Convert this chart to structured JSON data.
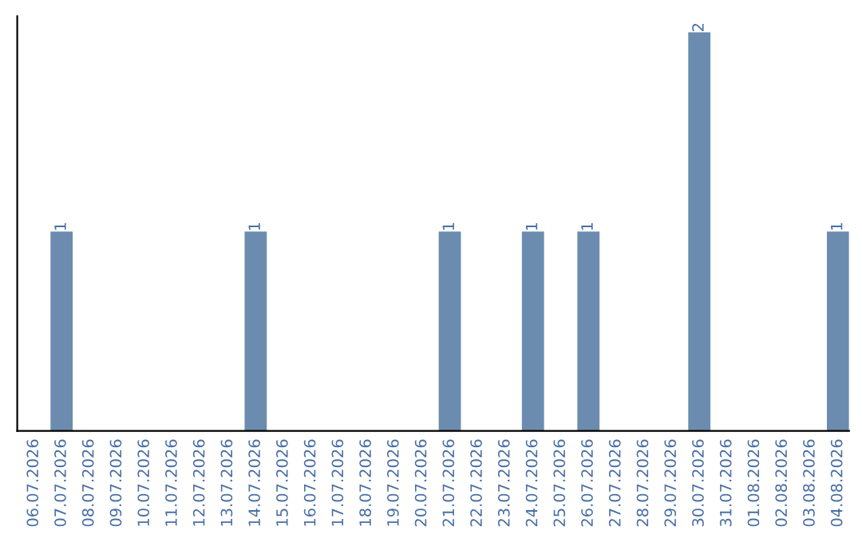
{
  "chart_data": {
    "type": "bar",
    "categories": [
      "06.07.2026",
      "07.07.2026",
      "08.07.2026",
      "09.07.2026",
      "10.07.2026",
      "11.07.2026",
      "12.07.2026",
      "13.07.2026",
      "14.07.2026",
      "15.07.2026",
      "16.07.2026",
      "17.07.2026",
      "18.07.2026",
      "19.07.2026",
      "20.07.2026",
      "21.07.2026",
      "22.07.2026",
      "23.07.2026",
      "24.07.2026",
      "25.07.2026",
      "26.07.2026",
      "27.07.2026",
      "28.07.2026",
      "29.07.2026",
      "30.07.2026",
      "31.07.2026",
      "01.08.2026",
      "02.08.2026",
      "03.08.2026",
      "04.08.2026"
    ],
    "values": [
      0,
      1,
      0,
      0,
      0,
      0,
      0,
      0,
      1,
      0,
      0,
      0,
      0,
      0,
      0,
      1,
      0,
      0,
      1,
      0,
      1,
      0,
      0,
      0,
      2,
      0,
      0,
      0,
      0,
      1
    ],
    "value_labels": [
      null,
      "1",
      null,
      null,
      null,
      null,
      null,
      null,
      "1",
      null,
      null,
      null,
      null,
      null,
      null,
      "1",
      null,
      null,
      "1",
      null,
      "1",
      null,
      null,
      null,
      "2",
      null,
      null,
      null,
      null,
      "1"
    ],
    "color": "#6b8cae",
    "tick_labels": "x",
    "grid": false,
    "legend": false
  }
}
